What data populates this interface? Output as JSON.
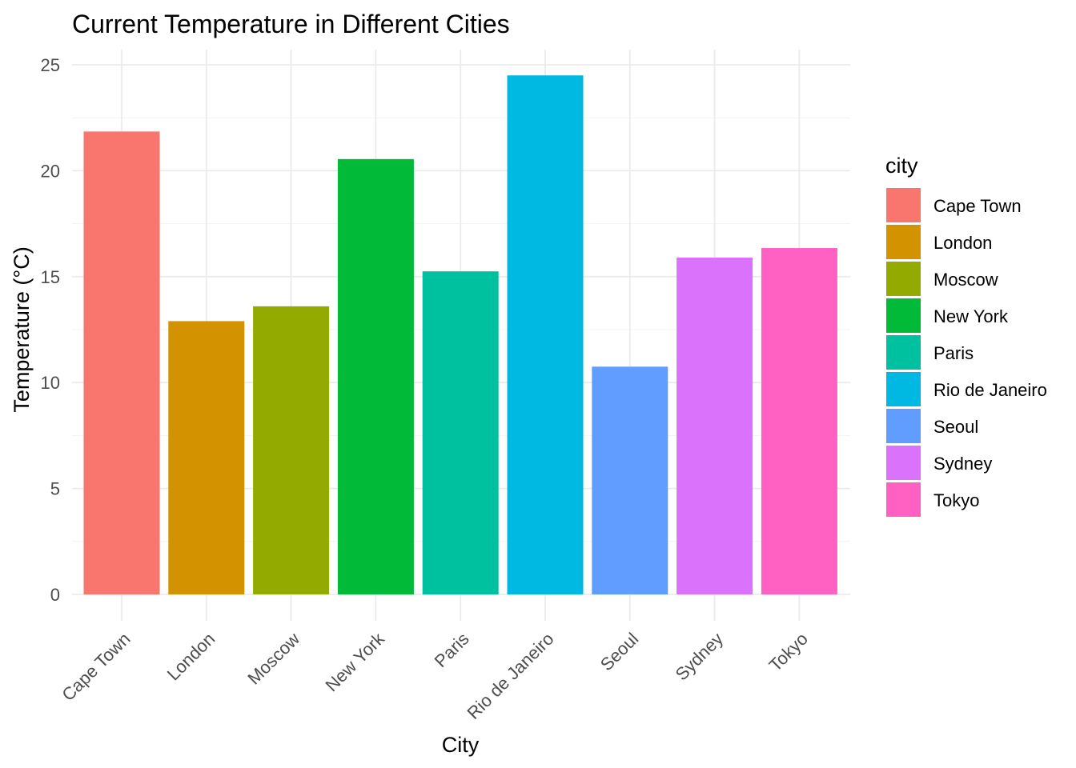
{
  "chart_data": {
    "type": "bar",
    "title": "Current Temperature in Different Cities",
    "xlabel": "City",
    "ylabel": "Temperature (°C)",
    "categories": [
      "Cape Town",
      "London",
      "Moscow",
      "New York",
      "Paris",
      "Rio de Janeiro",
      "Seoul",
      "Sydney",
      "Tokyo"
    ],
    "values": [
      21.85,
      12.9,
      13.6,
      20.55,
      15.25,
      24.5,
      10.75,
      15.9,
      16.35
    ],
    "colors": [
      "#F8766D",
      "#D39200",
      "#93AA00",
      "#00BA38",
      "#00C19F",
      "#00B9E3",
      "#619CFF",
      "#DB72FB",
      "#FF61C3"
    ],
    "ylim": [
      0,
      25
    ],
    "yticks": [
      0,
      5,
      10,
      15,
      20,
      25
    ],
    "grid": true,
    "legend": {
      "title": "city",
      "placement": "right",
      "entries": [
        "Cape Town",
        "London",
        "Moscow",
        "New York",
        "Paris",
        "Rio de Janeiro",
        "Seoul",
        "Sydney",
        "Tokyo"
      ]
    }
  }
}
